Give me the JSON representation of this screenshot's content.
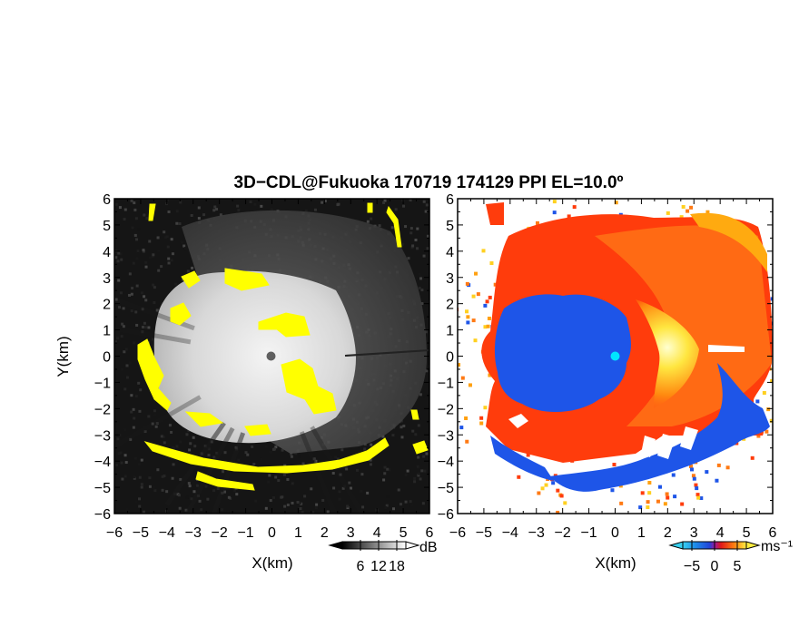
{
  "chart_data": [
    {
      "type": "heatmap",
      "title": "3D−CDL@Fukuoka 170719 174129 PPI EL=10.0º",
      "panel": "reflectivity",
      "xlabel": "X(km)",
      "ylabel": "Y(km)",
      "xlim": [
        -6,
        6
      ],
      "ylim": [
        -6,
        6
      ],
      "x_ticks": [
        "−6",
        "−5",
        "−4",
        "−3",
        "−2",
        "−1",
        "0",
        "1",
        "2",
        "3",
        "4",
        "5",
        "6"
      ],
      "y_ticks": [
        "6",
        "5",
        "4",
        "3",
        "2",
        "1",
        "0",
        "−1",
        "−2",
        "−3",
        "−4",
        "−5",
        "−6"
      ],
      "colorbar": {
        "unit": "dB",
        "ticks": [
          "6",
          "12",
          "18"
        ],
        "range": [
          0,
          21
        ],
        "colormap": "grayscale"
      },
      "radar_center": [
        0,
        0
      ],
      "echo_radius_km": 4.2,
      "colors": {
        "background": "#151515",
        "echo_low": "#5a5a5a",
        "echo_high": "#f2f2f2",
        "saturated": "#ffff00",
        "radar": "#606060"
      }
    },
    {
      "type": "heatmap",
      "panel": "doppler-velocity",
      "xlabel": "X(km)",
      "xlim": [
        -6,
        6
      ],
      "ylim": [
        -6,
        6
      ],
      "x_ticks": [
        "−6",
        "−5",
        "−4",
        "−3",
        "−2",
        "−1",
        "0",
        "1",
        "2",
        "3",
        "4",
        "5",
        "6"
      ],
      "y_ticks": [
        "6",
        "5",
        "4",
        "3",
        "2",
        "1",
        "0",
        "−1",
        "−2",
        "−3",
        "−4",
        "−5",
        "−6"
      ],
      "colorbar": {
        "unit": "ms⁻¹",
        "ticks": [
          "−5",
          "0",
          "5"
        ],
        "range": [
          -7,
          7
        ],
        "colormap": "blue-red-yellow"
      },
      "radar_center": [
        0,
        0
      ],
      "colors": {
        "negative": "#1f55e6",
        "positive": "#ff3a0a",
        "peak": "#ffff80",
        "radar": "#00e5ff"
      }
    }
  ]
}
